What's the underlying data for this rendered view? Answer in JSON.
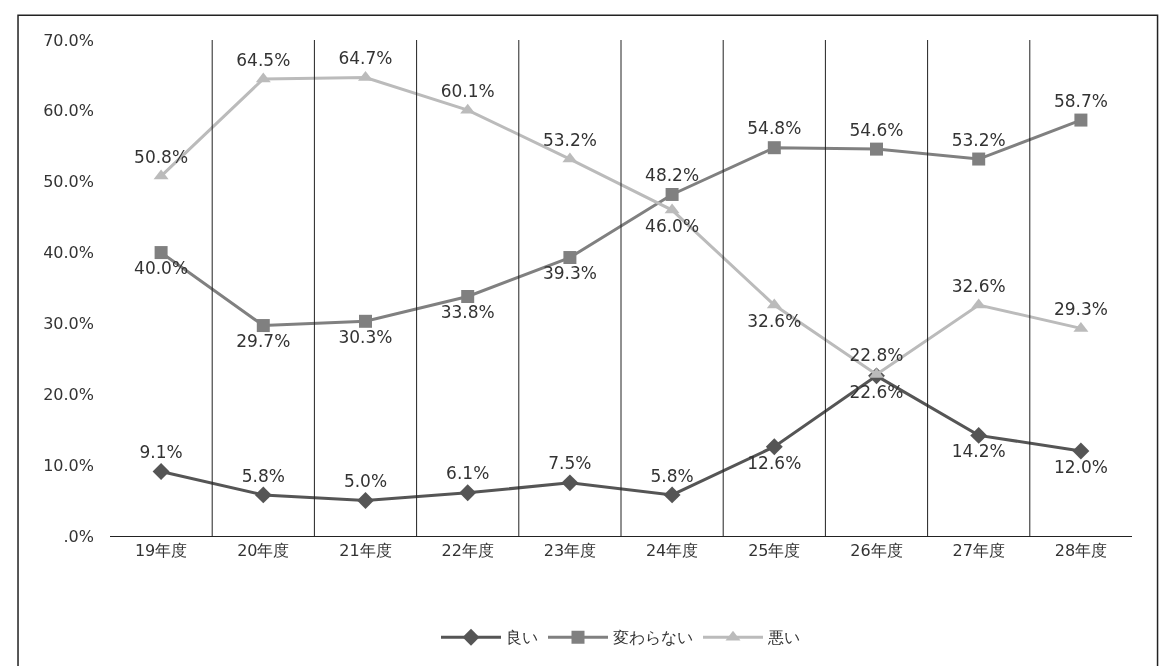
{
  "chart_data": {
    "type": "line",
    "categories": [
      "19年度",
      "20年度",
      "21年度",
      "22年度",
      "23年度",
      "24年度",
      "25年度",
      "26年度",
      "27年度",
      "28年度"
    ],
    "series": [
      {
        "name": "良い",
        "color": "#555555",
        "marker": "diamond",
        "values": [
          9.1,
          5.8,
          5.0,
          6.1,
          7.5,
          5.8,
          12.6,
          22.6,
          14.2,
          12.0
        ],
        "value_labels": [
          "9.1%",
          "5.8%",
          "5.0%",
          "6.1%",
          "7.5%",
          "5.8%",
          "12.6%",
          "22.6%",
          "14.2%",
          "12.0%"
        ]
      },
      {
        "name": "変わらない",
        "color": "#808080",
        "marker": "square",
        "values": [
          40.0,
          29.7,
          30.3,
          33.8,
          39.3,
          48.2,
          54.8,
          54.6,
          53.2,
          58.7
        ],
        "value_labels": [
          "40.0%",
          "29.7%",
          "30.3%",
          "33.8%",
          "39.3%",
          "48.2%",
          "54.8%",
          "54.6%",
          "53.2%",
          "58.7%"
        ]
      },
      {
        "name": "悪い",
        "color": "#bbbbbb",
        "marker": "triangle",
        "values": [
          50.8,
          64.5,
          64.7,
          60.1,
          53.2,
          46.0,
          32.6,
          22.8,
          32.6,
          29.3
        ],
        "value_labels": [
          "50.8%",
          "64.5%",
          "64.7%",
          "60.1%",
          "53.2%",
          "46.0%",
          "32.6%",
          "22.8%",
          "32.6%",
          "29.3%"
        ]
      }
    ],
    "ylim": [
      0,
      70
    ],
    "yticks": [
      {
        "value": 0,
        "label": ".0%"
      },
      {
        "value": 10,
        "label": "10.0%"
      },
      {
        "value": 20,
        "label": "20.0%"
      },
      {
        "value": 30,
        "label": "30.0%"
      },
      {
        "value": 40,
        "label": "40.0%"
      },
      {
        "value": 50,
        "label": "50.0%"
      },
      {
        "value": 60,
        "label": "60.0%"
      },
      {
        "value": 70,
        "label": "70.0%"
      }
    ],
    "grid": "x",
    "legend": "bottom",
    "line_style": "solid"
  }
}
